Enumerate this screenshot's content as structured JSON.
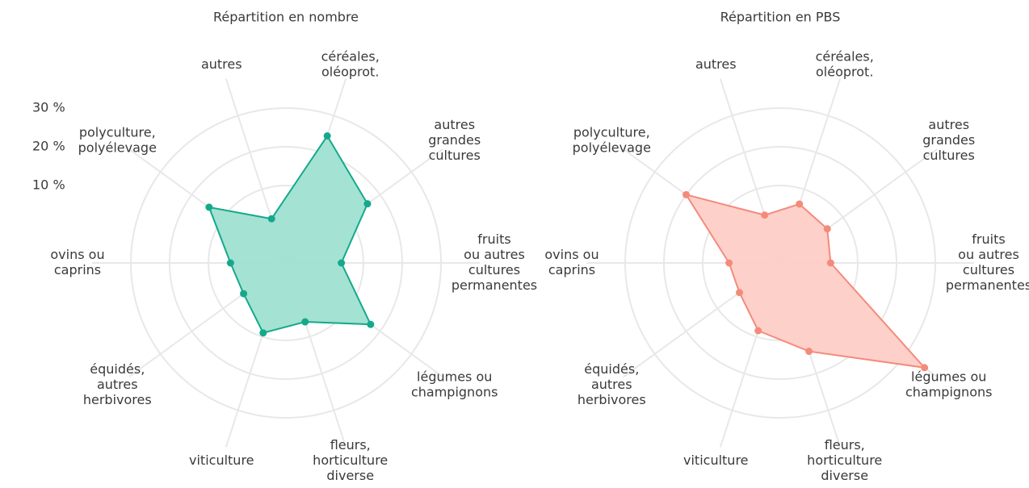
{
  "chart_data": [
    {
      "type": "radar",
      "title": "Répartition en nombre",
      "color": "#14a98b",
      "fill": "#9fe0d1",
      "categories": [
        [
          "céréales,",
          "oléoprot."
        ],
        [
          "autres",
          "grandes",
          "cultures"
        ],
        [
          "fruits",
          "ou autres",
          "cultures",
          "permanentes"
        ],
        [
          "légumes ou",
          "champignons"
        ],
        [
          "fleurs,",
          "horticulture",
          "diverse"
        ],
        [
          "viticulture"
        ],
        [
          "équidés,",
          "autres",
          "herbivores"
        ],
        [
          "ovins ou",
          "caprins"
        ],
        [
          "polyculture,",
          "polyélevage"
        ],
        [
          "autres"
        ]
      ],
      "values": [
        24.5,
        16,
        4.3,
        17,
        6,
        9,
        3.5,
        4.3,
        14.5,
        2
      ],
      "rlim": [
        -10,
        30
      ],
      "rticks": [
        {
          "value": 10,
          "label": "10 %"
        },
        {
          "value": 20,
          "label": "20 %"
        },
        {
          "value": 30,
          "label": "30 %"
        }
      ],
      "grid": true
    },
    {
      "type": "radar",
      "title": "Répartition en PBS",
      "color": "#f38b7b",
      "fill": "#fecec7",
      "categories": [
        [
          "céréales,",
          "oléoprot."
        ],
        [
          "autres",
          "grandes",
          "cultures"
        ],
        [
          "fruits",
          "ou autres",
          "cultures",
          "permanentes"
        ],
        [
          "légumes ou",
          "champignons"
        ],
        [
          "fleurs,",
          "horticulture",
          "diverse"
        ],
        [
          "viticulture"
        ],
        [
          "équidés,",
          "autres",
          "herbivores"
        ],
        [
          "ovins ou",
          "caprins"
        ],
        [
          "polyculture,",
          "polyélevage"
        ],
        [
          "autres"
        ]
      ],
      "values": [
        6,
        5,
        3,
        36,
        14,
        8.4,
        3,
        3.2,
        20,
        3
      ],
      "rlim": [
        -10,
        30
      ],
      "grid": true
    }
  ]
}
